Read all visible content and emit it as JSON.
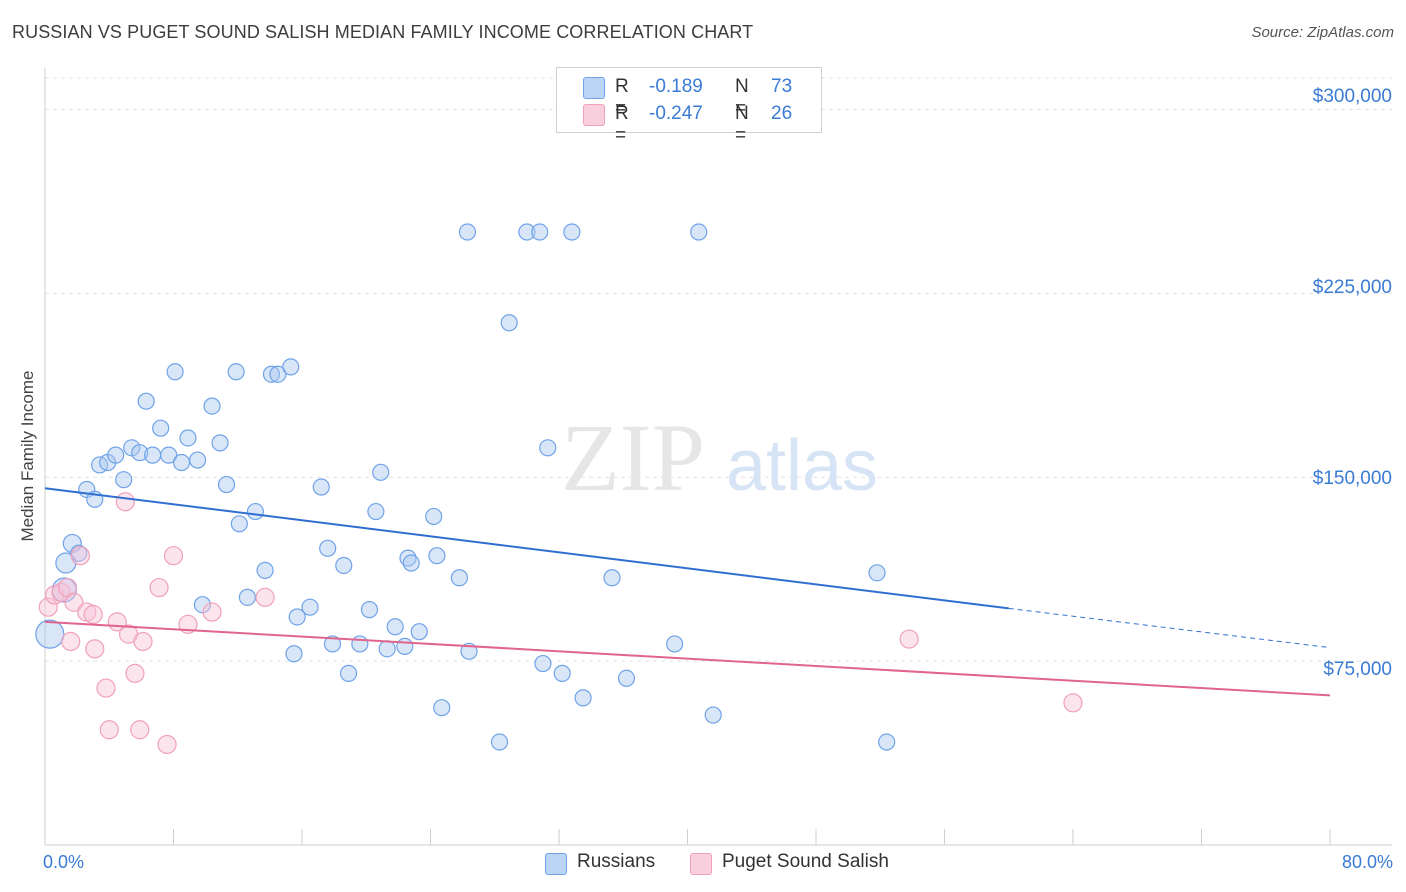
{
  "header": {
    "title": "RUSSIAN VS PUGET SOUND SALISH MEDIAN FAMILY INCOME CORRELATION CHART",
    "source": "Source: ZipAtlas.com"
  },
  "watermark": {
    "zip": "ZIP",
    "atlas": "atlas"
  },
  "legend": {
    "series1": {
      "r_label": "R =",
      "r_value": "-0.189",
      "n_label": "N =",
      "n_value": "73"
    },
    "series2": {
      "r_label": "R =",
      "r_value": "-0.247",
      "n_label": "N =",
      "n_value": "26"
    }
  },
  "bottom_legend": {
    "series1": "Russians",
    "series2": "Puget Sound Salish"
  },
  "colors": {
    "russians": "#6fa3e8",
    "russians_line": "#2f6fd0",
    "salish": "#f0a0bc",
    "salish_line": "#e0648e",
    "tick_text": "#3a7bd5"
  },
  "chart_data": {
    "type": "scatter",
    "title": "RUSSIAN VS PUGET SOUND SALISH MEDIAN FAMILY INCOME CORRELATION CHART",
    "xlabel": "",
    "ylabel": "Median Family Income",
    "xlim": [
      0,
      80
    ],
    "ylim": [
      0,
      312000
    ],
    "x_tick_labels": [
      "0.0%",
      "80.0%"
    ],
    "y_ticks": [
      75000,
      150000,
      225000,
      300000
    ],
    "y_tick_labels": [
      "$75,000",
      "$150,000",
      "$225,000",
      "$300,000"
    ],
    "grid": true,
    "series": [
      {
        "name": "Russians",
        "r": -0.189,
        "n": 73,
        "trend": {
          "x0": 0,
          "y0": 145500,
          "x1": 60,
          "y1": 96500,
          "x_end_dashed": 80,
          "y_end_dashed": 80500
        },
        "points": [
          [
            0.3,
            86000,
            14
          ],
          [
            1.2,
            104000,
            12
          ],
          [
            1.3,
            115000,
            10
          ],
          [
            1.7,
            123000,
            9
          ],
          [
            2.1,
            119000,
            8
          ],
          [
            2.6,
            145000,
            8
          ],
          [
            3.1,
            141000,
            8
          ],
          [
            3.4,
            155000,
            8
          ],
          [
            3.9,
            156000,
            8
          ],
          [
            4.4,
            159000,
            8
          ],
          [
            4.9,
            149000,
            8
          ],
          [
            5.4,
            162000,
            8
          ],
          [
            5.9,
            160000,
            8
          ],
          [
            6.3,
            181000,
            8
          ],
          [
            6.7,
            159000,
            8
          ],
          [
            7.2,
            170000,
            8
          ],
          [
            7.7,
            159000,
            8
          ],
          [
            8.1,
            193000,
            8
          ],
          [
            8.5,
            156000,
            8
          ],
          [
            8.9,
            166000,
            8
          ],
          [
            9.5,
            157000,
            8
          ],
          [
            9.8,
            98000,
            8
          ],
          [
            10.4,
            179000,
            8
          ],
          [
            10.9,
            164000,
            8
          ],
          [
            11.3,
            147000,
            8
          ],
          [
            11.9,
            193000,
            8
          ],
          [
            12.1,
            131000,
            8
          ],
          [
            12.6,
            101000,
            8
          ],
          [
            13.1,
            136000,
            8
          ],
          [
            13.7,
            112000,
            8
          ],
          [
            14.1,
            192000,
            8
          ],
          [
            14.5,
            192000,
            8
          ],
          [
            15.3,
            195000,
            8
          ],
          [
            15.5,
            78000,
            8
          ],
          [
            15.7,
            93000,
            8
          ],
          [
            16.5,
            97000,
            8
          ],
          [
            17.2,
            146000,
            8
          ],
          [
            17.6,
            121000,
            8
          ],
          [
            17.9,
            82000,
            8
          ],
          [
            18.6,
            114000,
            8
          ],
          [
            18.9,
            70000,
            8
          ],
          [
            19.6,
            82000,
            8
          ],
          [
            20.2,
            96000,
            8
          ],
          [
            20.6,
            136000,
            8
          ],
          [
            20.9,
            152000,
            8
          ],
          [
            21.3,
            80000,
            8
          ],
          [
            21.8,
            89000,
            8
          ],
          [
            22.4,
            81000,
            8
          ],
          [
            22.6,
            117000,
            8
          ],
          [
            22.8,
            115000,
            8
          ],
          [
            23.3,
            87000,
            8
          ],
          [
            24.2,
            134000,
            8
          ],
          [
            24.4,
            118000,
            8
          ],
          [
            24.7,
            56000,
            8
          ],
          [
            25.8,
            109000,
            8
          ],
          [
            26.3,
            250000,
            8
          ],
          [
            26.4,
            79000,
            8
          ],
          [
            28.3,
            42000,
            8
          ],
          [
            28.9,
            213000,
            8
          ],
          [
            30.0,
            250000,
            8
          ],
          [
            30.8,
            250000,
            8
          ],
          [
            31.0,
            74000,
            8
          ],
          [
            31.3,
            162000,
            8
          ],
          [
            32.2,
            70000,
            8
          ],
          [
            32.8,
            250000,
            8
          ],
          [
            33.5,
            60000,
            8
          ],
          [
            35.3,
            109000,
            8
          ],
          [
            36.2,
            68000,
            8
          ],
          [
            39.2,
            82000,
            8
          ],
          [
            40.7,
            250000,
            8
          ],
          [
            41.6,
            53000,
            8
          ],
          [
            51.8,
            111000,
            8
          ],
          [
            52.4,
            42000,
            8
          ]
        ]
      },
      {
        "name": "Puget Sound Salish",
        "r": -0.247,
        "n": 26,
        "trend": {
          "x0": 0,
          "y0": 91000,
          "x1": 80,
          "y1": 61000
        },
        "points": [
          [
            0.2,
            97000,
            9
          ],
          [
            0.6,
            102000,
            9
          ],
          [
            1.0,
            103000,
            9
          ],
          [
            1.4,
            105000,
            9
          ],
          [
            1.6,
            83000,
            9
          ],
          [
            1.8,
            99000,
            9
          ],
          [
            2.2,
            118000,
            9
          ],
          [
            2.6,
            95000,
            9
          ],
          [
            3.0,
            94000,
            9
          ],
          [
            3.1,
            80000,
            9
          ],
          [
            3.8,
            64000,
            9
          ],
          [
            4.0,
            47000,
            9
          ],
          [
            4.5,
            91000,
            9
          ],
          [
            5.0,
            140000,
            9
          ],
          [
            5.2,
            86000,
            9
          ],
          [
            5.6,
            70000,
            9
          ],
          [
            5.9,
            47000,
            9
          ],
          [
            6.1,
            83000,
            9
          ],
          [
            7.1,
            105000,
            9
          ],
          [
            7.6,
            41000,
            9
          ],
          [
            8.0,
            118000,
            9
          ],
          [
            8.9,
            90000,
            9
          ],
          [
            10.4,
            95000,
            9
          ],
          [
            13.7,
            101000,
            9
          ],
          [
            53.8,
            84000,
            9
          ],
          [
            64.0,
            58000,
            9
          ]
        ]
      }
    ]
  }
}
